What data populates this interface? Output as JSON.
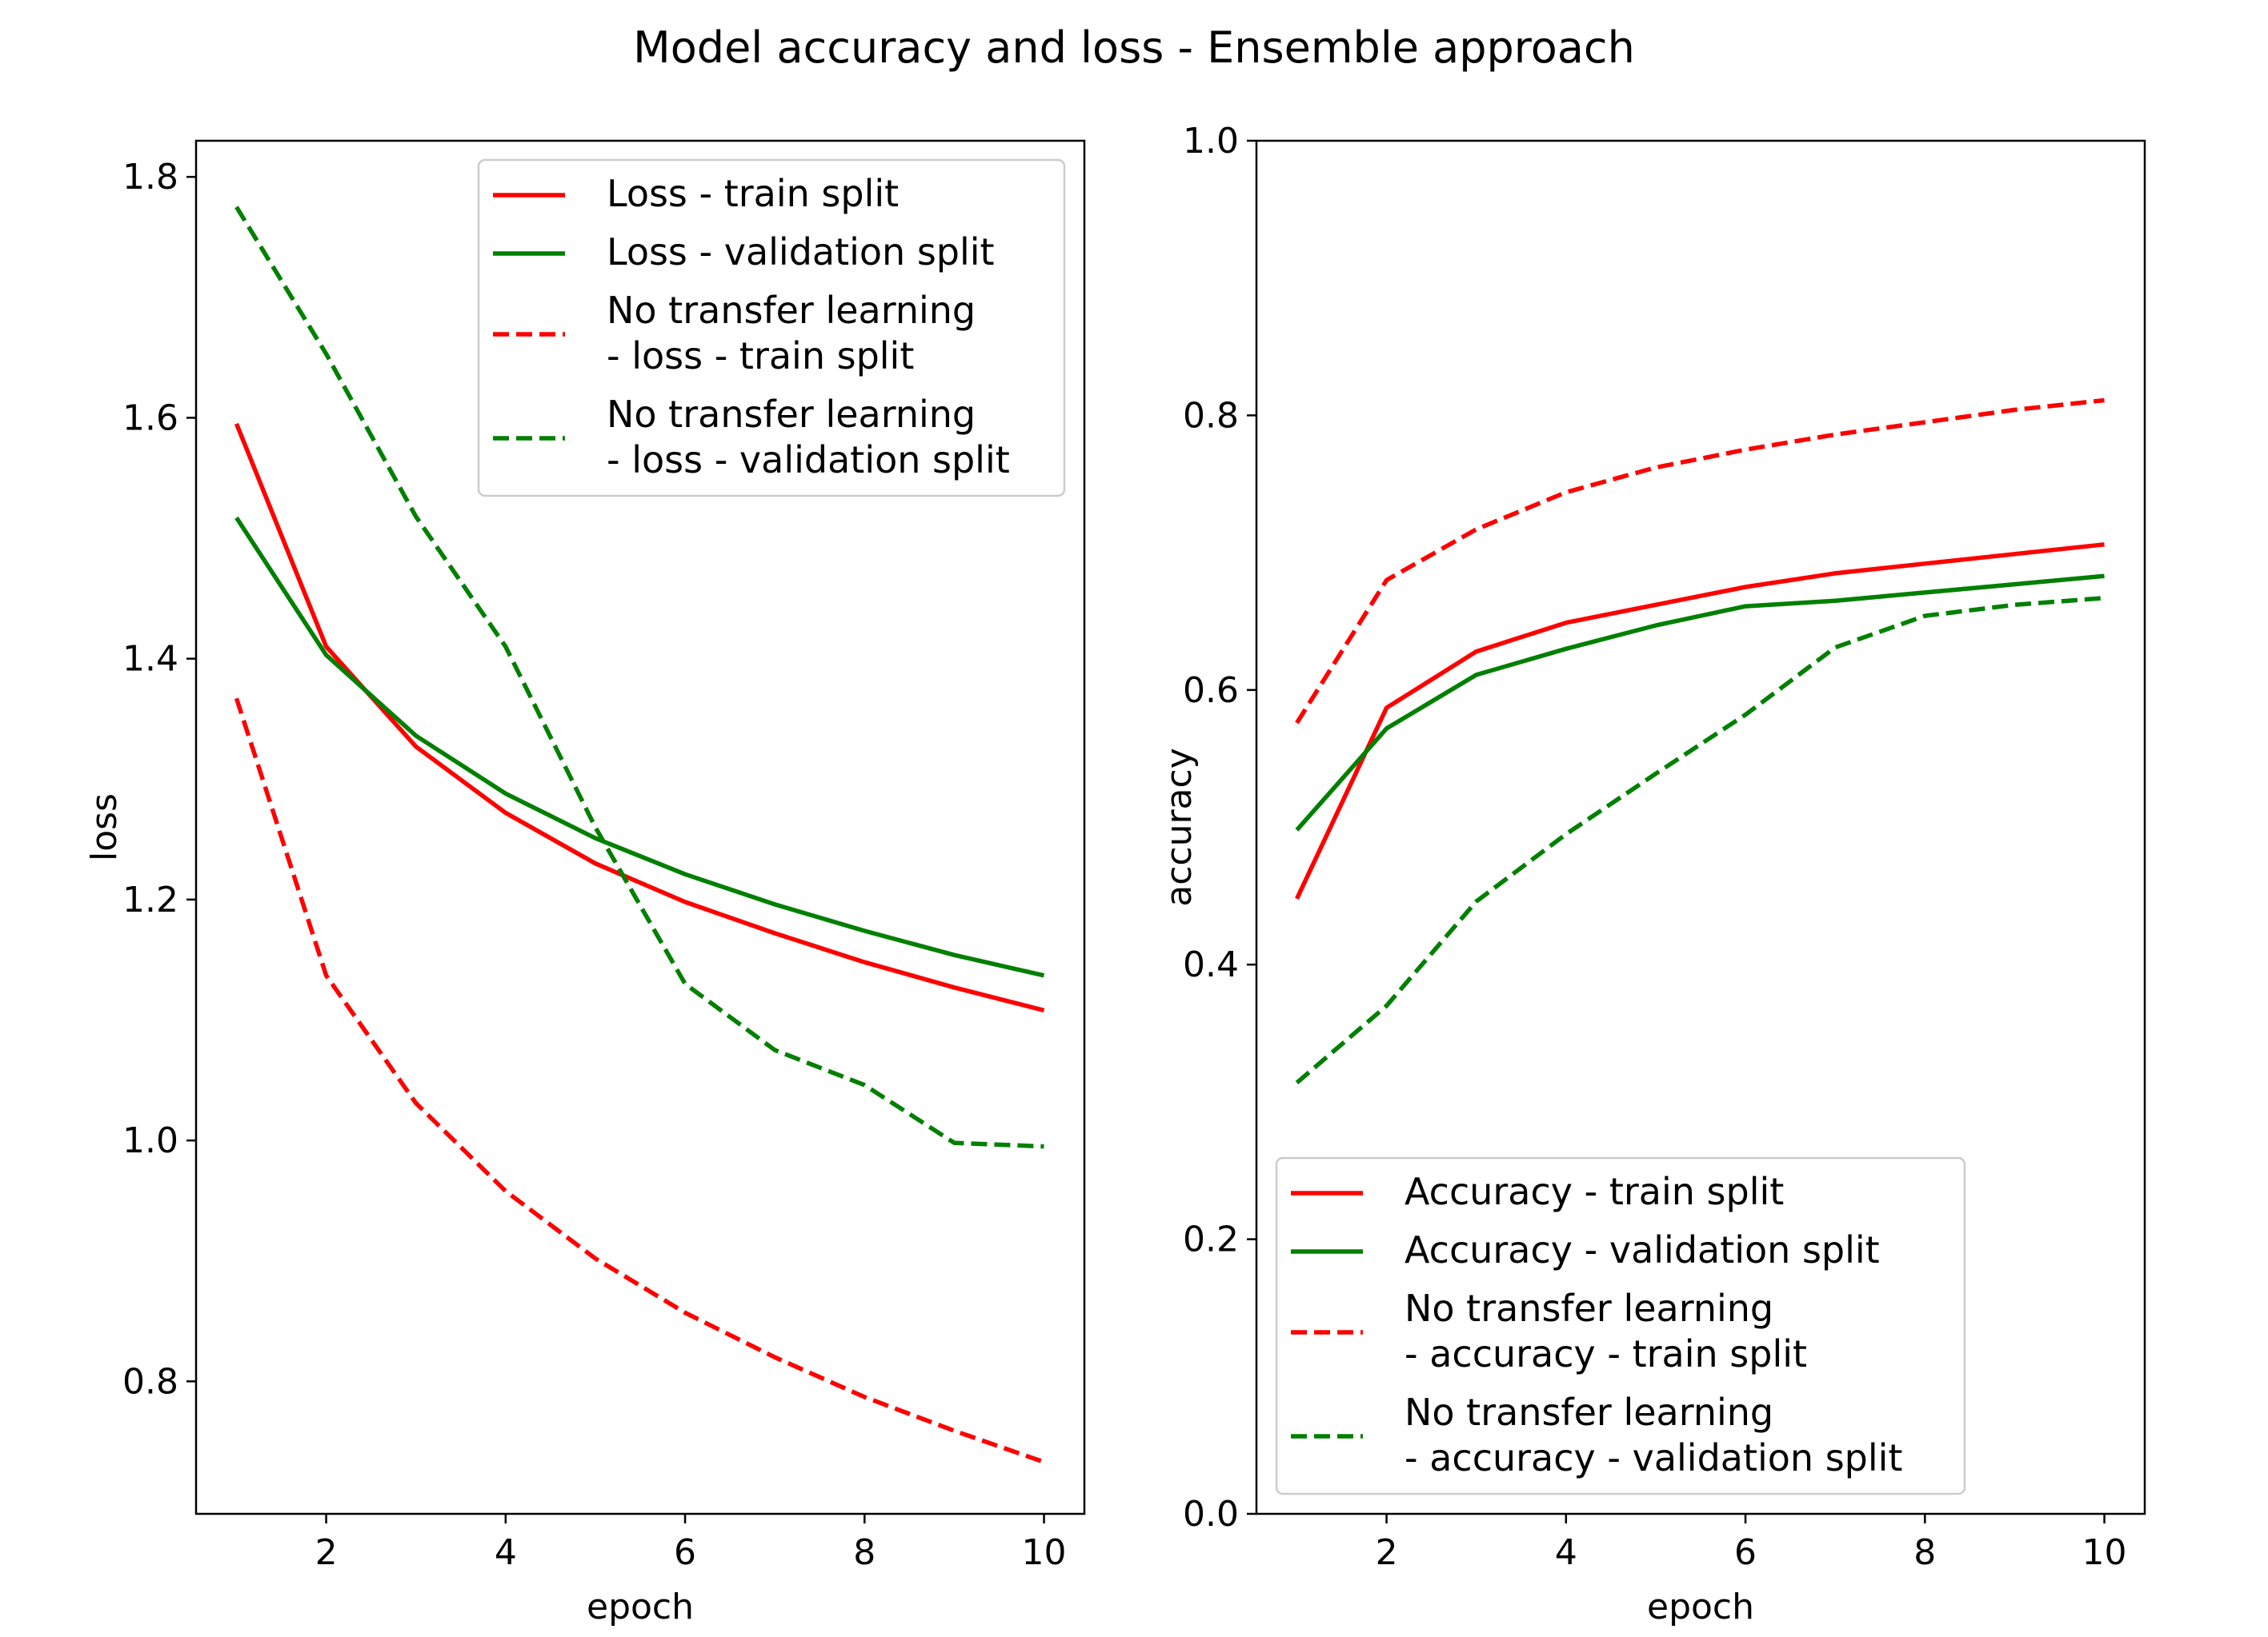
{
  "figure": {
    "title": "Model accuracy and loss - Ensemble approach"
  },
  "chart_data": [
    {
      "type": "line",
      "xlabel": "epoch",
      "ylabel": "loss",
      "xlim": [
        0.55,
        10.45
      ],
      "ylim": [
        0.69,
        1.83
      ],
      "xticks": [
        2,
        4,
        6,
        8,
        10
      ],
      "yticks": [
        0.8,
        1.0,
        1.2,
        1.4,
        1.6,
        1.8
      ],
      "ytick_format": 1,
      "legend_position": "upper right",
      "grid": false,
      "x": [
        1,
        2,
        3,
        4,
        5,
        6,
        7,
        8,
        9,
        10
      ],
      "series": [
        {
          "name": "Loss - train split",
          "color": "#ff0000",
          "style": "solid",
          "values": [
            1.595,
            1.41,
            1.327,
            1.272,
            1.23,
            1.198,
            1.172,
            1.148,
            1.127,
            1.108
          ]
        },
        {
          "name": "Loss - validation split",
          "color": "#008000",
          "style": "solid",
          "values": [
            1.517,
            1.403,
            1.336,
            1.288,
            1.251,
            1.221,
            1.196,
            1.174,
            1.154,
            1.137
          ]
        },
        {
          "name": "No transfer learning\n- loss - train split",
          "color": "#ff0000",
          "style": "dashed",
          "values": [
            1.367,
            1.137,
            1.031,
            0.958,
            0.902,
            0.857,
            0.82,
            0.787,
            0.759,
            0.733
          ]
        },
        {
          "name": "No transfer learning\n- loss - validation split",
          "color": "#008000",
          "style": "dashed",
          "values": [
            1.775,
            1.653,
            1.518,
            1.41,
            1.26,
            1.13,
            1.075,
            1.046,
            0.998,
            0.995
          ]
        }
      ]
    },
    {
      "type": "line",
      "xlabel": "epoch",
      "ylabel": "accuracy",
      "xlim": [
        0.55,
        10.45
      ],
      "ylim": [
        0.0,
        1.0
      ],
      "xticks": [
        2,
        4,
        6,
        8,
        10
      ],
      "yticks": [
        0.0,
        0.2,
        0.4,
        0.6,
        0.8,
        1.0
      ],
      "ytick_format": 1,
      "legend_position": "lower right",
      "grid": false,
      "x": [
        1,
        2,
        3,
        4,
        5,
        6,
        7,
        8,
        9,
        10
      ],
      "series": [
        {
          "name": "Accuracy - train split",
          "color": "#ff0000",
          "style": "solid",
          "values": [
            0.448,
            0.587,
            0.628,
            0.649,
            0.662,
            0.675,
            0.685,
            0.692,
            0.699,
            0.706
          ]
        },
        {
          "name": "Accuracy - validation split",
          "color": "#008000",
          "style": "solid",
          "values": [
            0.498,
            0.572,
            0.611,
            0.63,
            0.647,
            0.661,
            0.665,
            0.671,
            0.677,
            0.683
          ]
        },
        {
          "name": "No transfer learning\n- accuracy - train split",
          "color": "#ff0000",
          "style": "dashed",
          "values": [
            0.576,
            0.68,
            0.717,
            0.744,
            0.762,
            0.775,
            0.786,
            0.795,
            0.804,
            0.811
          ]
        },
        {
          "name": "No transfer learning\n- accuracy - validation split",
          "color": "#008000",
          "style": "dashed",
          "values": [
            0.314,
            0.37,
            0.446,
            0.495,
            0.539,
            0.582,
            0.631,
            0.654,
            0.662,
            0.667
          ]
        }
      ]
    }
  ]
}
